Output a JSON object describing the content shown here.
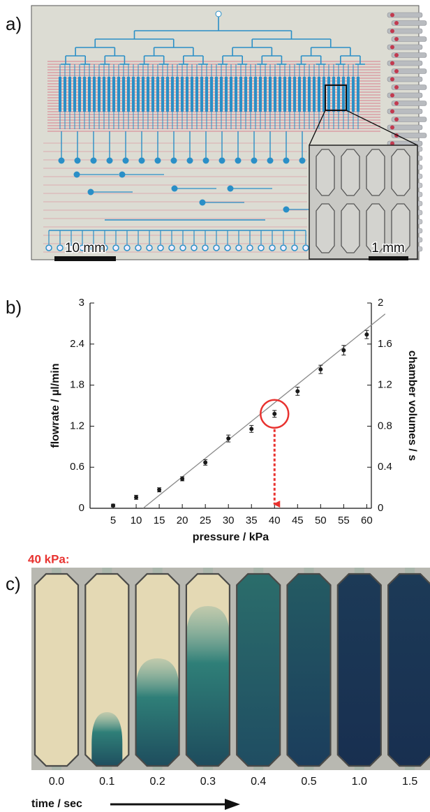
{
  "panel_labels": [
    "a)",
    "b)",
    "c)"
  ],
  "panel_a": {
    "scale_bar_left": "10 mm",
    "scale_bar_right": "1 mm"
  },
  "chart_data": {
    "type": "scatter",
    "x_label": "pressure / kPa",
    "y_label": "flowrate / µl/min",
    "y2_label": "chamber volumes / s",
    "x": [
      5,
      10,
      15,
      20,
      25,
      30,
      35,
      40,
      45,
      50,
      55,
      60
    ],
    "values": [
      0.04,
      0.16,
      0.27,
      0.43,
      0.67,
      1.02,
      1.16,
      1.38,
      1.71,
      2.03,
      2.31,
      2.54
    ],
    "errors": [
      0.02,
      0.03,
      0.03,
      0.03,
      0.04,
      0.05,
      0.05,
      0.05,
      0.06,
      0.06,
      0.07,
      0.06
    ],
    "color": "#1a1a1a",
    "fit": {
      "x": [
        11.5,
        64
      ],
      "values": [
        0,
        2.84
      ],
      "color": "#8a8a8a"
    },
    "highlight": {
      "x": 40,
      "color": "#e8322f"
    },
    "xlim": [
      0,
      61
    ],
    "ylim": [
      0,
      3
    ],
    "y2lim": [
      0,
      2
    ],
    "xticks": [
      5,
      10,
      15,
      20,
      25,
      30,
      35,
      40,
      45,
      50,
      55,
      60
    ],
    "yticks": [
      0,
      0.6,
      1.2,
      1.8,
      2.4,
      3
    ],
    "y2ticks": [
      0,
      0.4,
      0.8,
      1.2,
      1.6,
      2
    ]
  },
  "panel_c": {
    "annotation": "40 kPa:",
    "time_labels": [
      "0.0",
      "0.1",
      "0.2",
      "0.3",
      "0.4",
      "0.5",
      "1.0",
      "1.5"
    ],
    "axis_label": "time / sec"
  }
}
